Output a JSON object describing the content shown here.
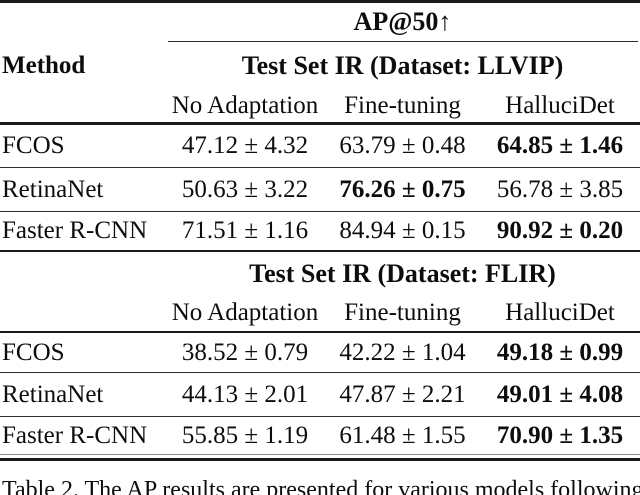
{
  "page": {
    "background": "#ffffff",
    "text_color": "#0d0d0d"
  },
  "table": {
    "metric_header": "AP@50↑",
    "method_header": "Method",
    "sections": [
      {
        "title": "Test Set IR (Dataset: LLVIP)",
        "columns": [
          "No Adaptation",
          "Fine-tuning",
          "HalluciDet"
        ],
        "rows": [
          {
            "method": "FCOS",
            "values": [
              "47.12 ± 4.32",
              "63.79 ± 0.48",
              "64.85 ± 1.46"
            ],
            "bold_value_index": 2
          },
          {
            "method": "RetinaNet",
            "values": [
              "50.63 ± 3.22",
              "76.26 ± 0.75",
              "56.78 ± 3.85"
            ],
            "bold_value_index": 1
          },
          {
            "method": "Faster R-CNN",
            "values": [
              "71.51 ± 1.16",
              "84.94 ± 0.15",
              "90.92 ± 0.20"
            ],
            "bold_value_index": 2
          }
        ]
      },
      {
        "title": "Test Set IR (Dataset: FLIR)",
        "columns": [
          "No Adaptation",
          "Fine-tuning",
          "HalluciDet"
        ],
        "rows": [
          {
            "method": "FCOS",
            "values": [
              "38.52 ± 0.79",
              "42.22 ± 1.04",
              "49.18 ± 0.99"
            ],
            "bold_value_index": 2
          },
          {
            "method": "RetinaNet",
            "values": [
              "44.13 ± 2.01",
              "47.87 ± 2.21",
              "49.01 ± 4.08"
            ],
            "bold_value_index": 2
          },
          {
            "method": "Faster R-CNN",
            "values": [
              "55.85 ± 1.19",
              "61.48 ± 1.55",
              "70.90 ± 1.35"
            ],
            "bold_value_index": 2
          }
        ]
      }
    ]
  },
  "caption": {
    "text": "Table 2. The AP results are presented for various models following"
  }
}
